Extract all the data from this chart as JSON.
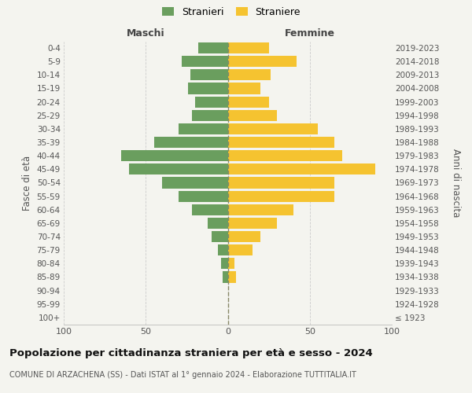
{
  "age_groups": [
    "100+",
    "95-99",
    "90-94",
    "85-89",
    "80-84",
    "75-79",
    "70-74",
    "65-69",
    "60-64",
    "55-59",
    "50-54",
    "45-49",
    "40-44",
    "35-39",
    "30-34",
    "25-29",
    "20-24",
    "15-19",
    "10-14",
    "5-9",
    "0-4"
  ],
  "birth_years": [
    "≤ 1923",
    "1924-1928",
    "1929-1933",
    "1934-1938",
    "1939-1943",
    "1944-1948",
    "1949-1953",
    "1954-1958",
    "1959-1963",
    "1964-1968",
    "1969-1973",
    "1974-1978",
    "1979-1983",
    "1984-1988",
    "1989-1993",
    "1994-1998",
    "1999-2003",
    "2004-2008",
    "2009-2013",
    "2014-2018",
    "2019-2023"
  ],
  "males": [
    0,
    0,
    0,
    3,
    4,
    6,
    10,
    12,
    22,
    30,
    40,
    60,
    65,
    45,
    30,
    22,
    20,
    24,
    23,
    28,
    18
  ],
  "females": [
    0,
    0,
    0,
    5,
    4,
    15,
    20,
    30,
    40,
    65,
    65,
    90,
    70,
    65,
    55,
    30,
    25,
    20,
    26,
    42,
    25
  ],
  "male_color": "#6a9e5e",
  "female_color": "#f5c330",
  "background_color": "#f4f4ef",
  "grid_color": "#cccccc",
  "title": "Popolazione per cittadinanza straniera per età e sesso - 2024",
  "subtitle": "COMUNE DI ARZACHENA (SS) - Dati ISTAT al 1° gennaio 2024 - Elaborazione TUTTITALIA.IT",
  "xlabel_left": "Maschi",
  "xlabel_right": "Femmine",
  "ylabel_left": "Fasce di età",
  "ylabel_right": "Anni di nascita",
  "legend_male": "Stranieri",
  "legend_female": "Straniere",
  "xlim": 100,
  "bar_height": 0.82
}
